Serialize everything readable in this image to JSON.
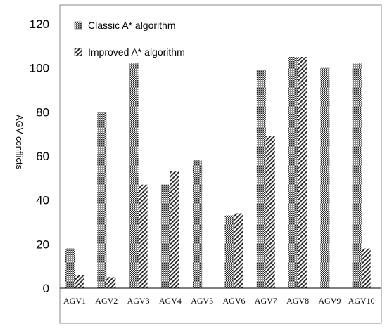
{
  "chart_data": {
    "type": "bar",
    "title": "",
    "xlabel": "",
    "ylabel": "AGV conflicts",
    "ylim": [
      0,
      120
    ],
    "yticks": [
      0,
      20,
      40,
      60,
      80,
      100,
      120
    ],
    "grid": false,
    "legend_position": "top-left",
    "categories": [
      "AGV1",
      "AGV2",
      "AGV3",
      "AGV4",
      "AGV5",
      "AGV6",
      "AGV7",
      "AGV8",
      "AGV9",
      "AGV10"
    ],
    "series": [
      {
        "name": "Classic A* algorithm",
        "pattern": "checker",
        "color": "#333333",
        "values": [
          18,
          80,
          102,
          47,
          58,
          33,
          99,
          105,
          100,
          102
        ]
      },
      {
        "name": "Improved A* algorithm",
        "pattern": "diagonal-hatch",
        "color": "#333333",
        "values": [
          6,
          5,
          47,
          53,
          0,
          34,
          69,
          105,
          0,
          18
        ]
      }
    ]
  }
}
